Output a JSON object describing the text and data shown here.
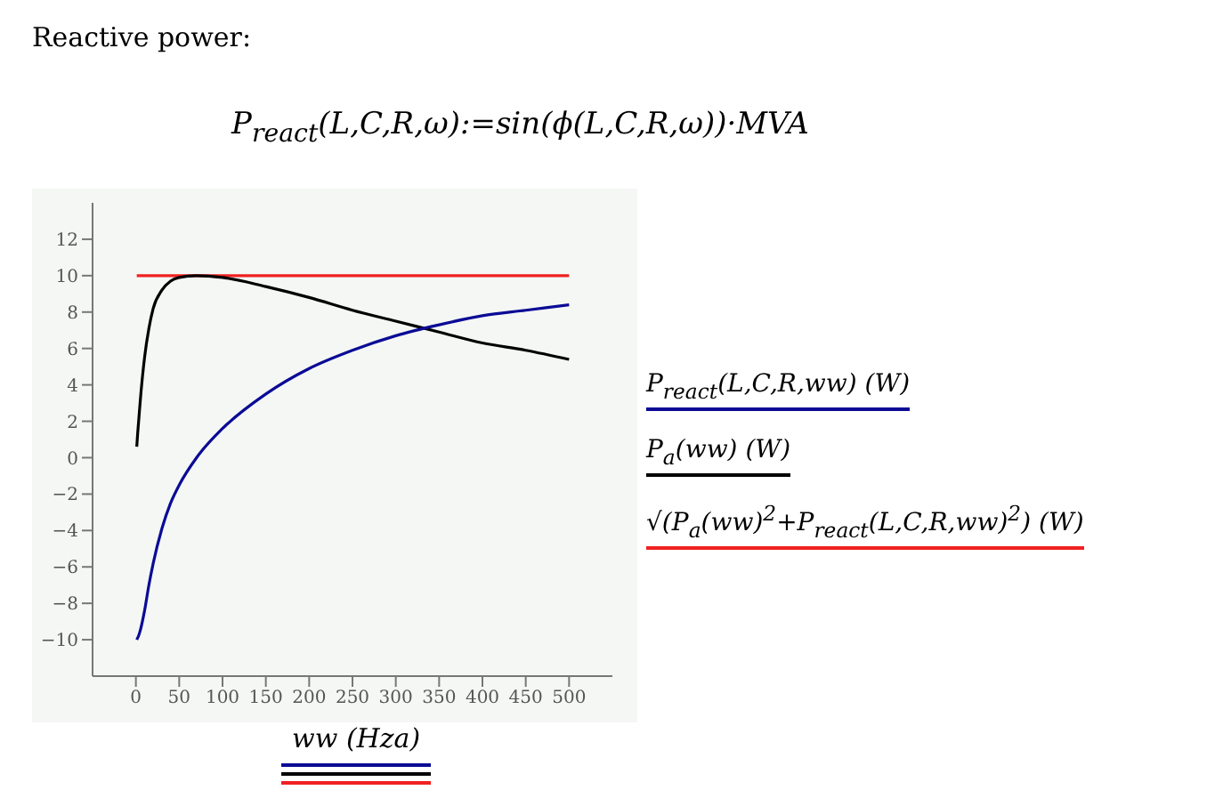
{
  "chart_data": {
    "type": "line",
    "title": "Reactive power:",
    "subtitle": "P$_{react}$(L,C,R,ω):=sin(ϕ(L,C,R,ω))·MVA",
    "xlabel": "ww (Hza)",
    "x": [
      1,
      2,
      3,
      5,
      10,
      15,
      20,
      30,
      40,
      50,
      70,
      100,
      150,
      200,
      250,
      300,
      350,
      400,
      450,
      500
    ],
    "series": [
      {
        "name": "P$_{react}$(L,C,R,ww) (W)",
        "color": "#0b0b96",
        "values": [
          -10,
          -9.9,
          -9.8,
          -9.5,
          -8.4,
          -7,
          -5.8,
          -3.9,
          -2.5,
          -1.5,
          0,
          1.6,
          3.5,
          4.9,
          5.9,
          6.7,
          7.3,
          7.8,
          8.1,
          8.4
        ]
      },
      {
        "name": "P$_{a}$(ww) (W)",
        "color": "#000000",
        "values": [
          0.6,
          1.3,
          1.9,
          3.1,
          5.5,
          7.1,
          8.2,
          9.2,
          9.7,
          9.9,
          10,
          9.9,
          9.4,
          8.8,
          8.1,
          7.5,
          6.9,
          6.3,
          5.9,
          5.4
        ]
      },
      {
        "name": "√(P$_{a}$(ww)$^{2}$+P$_{react}$(L,C,R,ww)$^{2}$) (W)",
        "color": "#f02020",
        "values": [
          10,
          10,
          10,
          10,
          10,
          10,
          10,
          10,
          10,
          10,
          10,
          10,
          10,
          10,
          10,
          10,
          10,
          10,
          10,
          10
        ]
      }
    ],
    "xlim": [
      -50,
      550
    ],
    "xticks": [
      0,
      50,
      100,
      150,
      200,
      250,
      300,
      350,
      400,
      450,
      500
    ],
    "ylim": [
      -12,
      14
    ],
    "yticks": [
      -10,
      -8,
      -6,
      -4,
      -2,
      0,
      2,
      4,
      6,
      8,
      10,
      12
    ],
    "legend": "right",
    "marker": "none",
    "line_style": "solid"
  }
}
